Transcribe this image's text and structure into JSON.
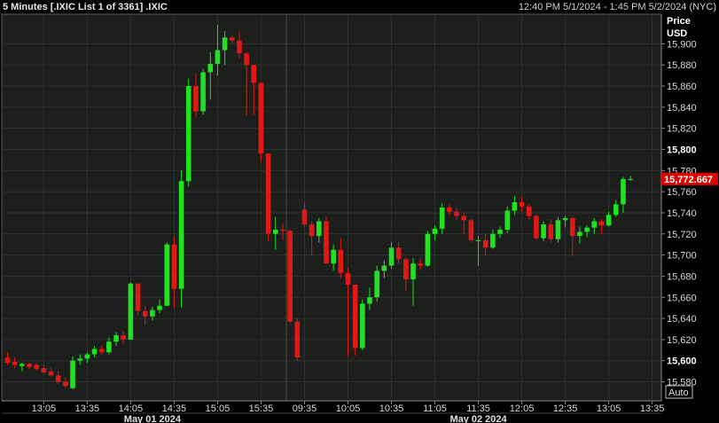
{
  "header": {
    "title": "5 Minutes [.IXIC List 1 of 3361] .IXIC",
    "range": "12:40 PM 5/1/2024 - 1:45 PM 5/2/2024 (NYC)"
  },
  "axis": {
    "ylabel_line1": "Price",
    "ylabel_line2": "USD",
    "auto_label": "Auto"
  },
  "colors": {
    "up": "#22e022",
    "down": "#e01818",
    "grid": "#2e322e",
    "panel": "#1c1f1c",
    "last_bg": "#e00000"
  },
  "chart_data": {
    "type": "candlestick",
    "title": "5 Minutes [.IXIC List 1 of 3361] .IXIC",
    "ylabel": "Price USD",
    "ylim": [
      15562,
      15928
    ],
    "yticks": [
      15580,
      15600,
      15620,
      15640,
      15660,
      15680,
      15700,
      15720,
      15740,
      15760,
      15780,
      15800,
      15820,
      15840,
      15860,
      15880,
      15900
    ],
    "ytick_labels": [
      "15,580",
      "15,600",
      "15,620",
      "15,640",
      "15,660",
      "15,680",
      "15,700",
      "15,720",
      "15,740",
      "15,760",
      "15,780",
      "15,800",
      "15,820",
      "15,840",
      "15,860",
      "15,880",
      "15,900"
    ],
    "bold_ticks": [
      "15,600",
      "15,800"
    ],
    "x_ticks": [
      {
        "label": "13:05",
        "i": 5
      },
      {
        "label": "13:35",
        "i": 11
      },
      {
        "label": "14:05",
        "i": 17
      },
      {
        "label": "14:35",
        "i": 23
      },
      {
        "label": "15:05",
        "i": 29
      },
      {
        "label": "15:35",
        "i": 35
      },
      {
        "label": "09:35",
        "i": 41
      },
      {
        "label": "10:05",
        "i": 47
      },
      {
        "label": "10:35",
        "i": 53
      },
      {
        "label": "11:05",
        "i": 59
      },
      {
        "label": "11:35",
        "i": 65
      },
      {
        "label": "12:05",
        "i": 71
      },
      {
        "label": "12:35",
        "i": 77
      },
      {
        "label": "13:05",
        "i": 83
      },
      {
        "label": "13:35",
        "i": 89
      }
    ],
    "date_labels": [
      {
        "label": "May 01 2024",
        "i": 20
      },
      {
        "label": "May 02 2024",
        "i": 65
      }
    ],
    "session_break_i": 38,
    "last_price": "15,772.667",
    "candles": [
      [
        15603,
        15608,
        15596,
        15598
      ],
      [
        15599,
        15603,
        15593,
        15596
      ],
      [
        15595,
        15598,
        15590,
        15597
      ],
      [
        15597,
        15598,
        15592,
        15594
      ],
      [
        15596,
        15598,
        15591,
        15592
      ],
      [
        15593,
        15596,
        15588,
        15589
      ],
      [
        15590,
        15594,
        15585,
        15586
      ],
      [
        15586,
        15590,
        15578,
        15580
      ],
      [
        15580,
        15584,
        15574,
        15576
      ],
      [
        15574,
        15604,
        15573,
        15600
      ],
      [
        15600,
        15606,
        15596,
        15602
      ],
      [
        15602,
        15608,
        15598,
        15606
      ],
      [
        15606,
        15614,
        15603,
        15611
      ],
      [
        15611,
        15614,
        15606,
        15608
      ],
      [
        15608,
        15622,
        15606,
        15618
      ],
      [
        15618,
        15627,
        15614,
        15624
      ],
      [
        15624,
        15628,
        15616,
        15620
      ],
      [
        15620,
        15674,
        15620,
        15673
      ],
      [
        15673,
        15673,
        15643,
        15647
      ],
      [
        15647,
        15652,
        15634,
        15642
      ],
      [
        15642,
        15651,
        15638,
        15648
      ],
      [
        15648,
        15658,
        15645,
        15652
      ],
      [
        15652,
        15712,
        15652,
        15710
      ],
      [
        15710,
        15718,
        15650,
        15668
      ],
      [
        15668,
        15780,
        15650,
        15770
      ],
      [
        15770,
        15867,
        15765,
        15860
      ],
      [
        15860,
        15872,
        15830,
        15836
      ],
      [
        15836,
        15876,
        15833,
        15873
      ],
      [
        15873,
        15892,
        15847,
        15881
      ],
      [
        15881,
        15918,
        15870,
        15894
      ],
      [
        15894,
        15912,
        15880,
        15906
      ],
      [
        15906,
        15908,
        15900,
        15903
      ],
      [
        15903,
        15912,
        15886,
        15891
      ],
      [
        15891,
        15892,
        15832,
        15880
      ],
      [
        15880,
        15880,
        15833,
        15863
      ],
      [
        15863,
        15863,
        15788,
        15796
      ],
      [
        15796,
        15796,
        15713,
        15720
      ],
      [
        15720,
        15736,
        15705,
        15724
      ],
      [
        15724,
        15730,
        15714,
        15723
      ],
      [
        15723,
        15724,
        15636,
        15637
      ],
      [
        15637,
        15640,
        15600,
        15603
      ],
      [
        15743,
        15750,
        15726,
        15729
      ],
      [
        15729,
        15732,
        15700,
        15718
      ],
      [
        15718,
        15735,
        15712,
        15732
      ],
      [
        15732,
        15737,
        15693,
        15692
      ],
      [
        15692,
        15710,
        15685,
        15705
      ],
      [
        15705,
        15716,
        15678,
        15683
      ],
      [
        15683,
        15688,
        15604,
        15672
      ],
      [
        15672,
        15670,
        15605,
        15612
      ],
      [
        15612,
        15658,
        15610,
        15654
      ],
      [
        15654,
        15669,
        15648,
        15660
      ],
      [
        15660,
        15690,
        15656,
        15685
      ],
      [
        15685,
        15695,
        15678,
        15690
      ],
      [
        15690,
        15712,
        15687,
        15707
      ],
      [
        15707,
        15712,
        15692,
        15696
      ],
      [
        15696,
        15698,
        15666,
        15677
      ],
      [
        15677,
        15697,
        15652,
        15692
      ],
      [
        15692,
        15697,
        15686,
        15690
      ],
      [
        15690,
        15723,
        15689,
        15720
      ],
      [
        15720,
        15728,
        15714,
        15725
      ],
      [
        15725,
        15749,
        15720,
        15745
      ],
      [
        15745,
        15748,
        15738,
        15741
      ],
      [
        15741,
        15745,
        15733,
        15737
      ],
      [
        15737,
        15740,
        15720,
        15733
      ],
      [
        15733,
        15734,
        15712,
        15714
      ],
      [
        15714,
        15718,
        15690,
        15714
      ],
      [
        15714,
        15720,
        15700,
        15707
      ],
      [
        15707,
        15724,
        15706,
        15720
      ],
      [
        15720,
        15727,
        15716,
        15724
      ],
      [
        15724,
        15746,
        15721,
        15742
      ],
      [
        15742,
        15756,
        15738,
        15750
      ],
      [
        15750,
        15755,
        15741,
        15746
      ],
      [
        15746,
        15748,
        15734,
        15737
      ],
      [
        15737,
        15739,
        15714,
        15716
      ],
      [
        15716,
        15732,
        15713,
        15729
      ],
      [
        15729,
        15734,
        15712,
        15715
      ],
      [
        15715,
        15736,
        15712,
        15733
      ],
      [
        15733,
        15737,
        15726,
        15735
      ],
      [
        15735,
        15736,
        15699,
        15718
      ],
      [
        15718,
        15727,
        15711,
        15722
      ],
      [
        15722,
        15728,
        15717,
        15726
      ],
      [
        15726,
        15735,
        15720,
        15732
      ],
      [
        15732,
        15734,
        15720,
        15728
      ],
      [
        15728,
        15741,
        15727,
        15738
      ],
      [
        15738,
        15752,
        15736,
        15748
      ],
      [
        15748,
        15774,
        15740,
        15772
      ],
      [
        15772,
        15775,
        15770,
        15772
      ]
    ]
  }
}
